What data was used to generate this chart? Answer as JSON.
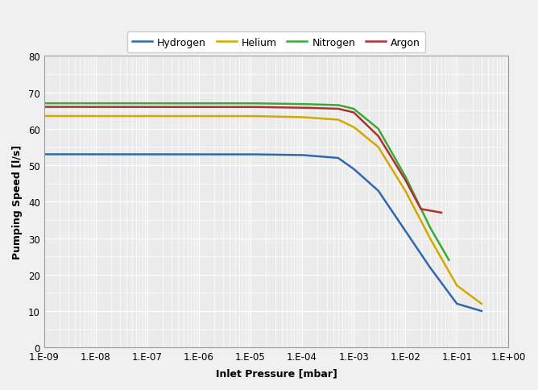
{
  "title": "",
  "xlabel": "Inlet Pressure [mbar]",
  "ylabel": "Pumping Speed [l/s]",
  "xlim": [
    1e-09,
    1.0
  ],
  "ylim": [
    0,
    80
  ],
  "yticks": [
    0,
    10,
    20,
    30,
    40,
    50,
    60,
    70,
    80
  ],
  "xtick_labels": [
    "1.E-09",
    "1.E-08",
    "1.E-07",
    "1.E-06",
    "1.E-05",
    "1.E-04",
    "1.E-03",
    "1.E-02",
    "1.E-01",
    "1.E+00"
  ],
  "series": [
    {
      "label": "Hydrogen",
      "color": "#3068b0",
      "points_x": [
        1e-09,
        1e-08,
        1e-07,
        1e-06,
        1e-05,
        0.0001,
        0.0005,
        0.001,
        0.003,
        0.01,
        0.03,
        0.1,
        0.3
      ],
      "points_y": [
        53.0,
        53.0,
        53.0,
        53.0,
        53.0,
        52.8,
        52.0,
        49.0,
        43.0,
        32.0,
        22.0,
        12.0,
        10.0
      ]
    },
    {
      "label": "Helium",
      "color": "#d4a800",
      "points_x": [
        1e-09,
        1e-08,
        1e-07,
        1e-06,
        1e-05,
        0.0001,
        0.0005,
        0.001,
        0.003,
        0.01,
        0.03,
        0.1,
        0.3
      ],
      "points_y": [
        63.5,
        63.5,
        63.5,
        63.5,
        63.5,
        63.2,
        62.5,
        60.5,
        55.0,
        43.0,
        30.0,
        17.0,
        12.0
      ]
    },
    {
      "label": "Nitrogen",
      "color": "#3aaa35",
      "points_x": [
        1e-09,
        1e-08,
        1e-07,
        1e-06,
        1e-05,
        0.0001,
        0.0005,
        0.001,
        0.003,
        0.01,
        0.03,
        0.07
      ],
      "points_y": [
        67.0,
        67.0,
        67.0,
        67.0,
        67.0,
        66.8,
        66.5,
        65.5,
        60.0,
        47.0,
        33.0,
        24.0
      ]
    },
    {
      "label": "Argon",
      "color": "#b03030",
      "points_x": [
        1e-09,
        1e-08,
        1e-07,
        1e-06,
        1e-05,
        0.0001,
        0.0005,
        0.001,
        0.003,
        0.01,
        0.02,
        0.05
      ],
      "points_y": [
        66.0,
        66.0,
        66.0,
        66.0,
        66.0,
        65.8,
        65.5,
        64.5,
        58.0,
        46.0,
        38.0,
        37.0
      ]
    }
  ],
  "background_color": "#f0f0f0",
  "plot_bg_color": "#ebebeb",
  "grid_major_color": "#ffffff",
  "grid_minor_color": "#ffffff",
  "legend_fontsize": 9,
  "axis_label_fontsize": 9,
  "tick_fontsize": 8.5,
  "line_width": 1.8
}
